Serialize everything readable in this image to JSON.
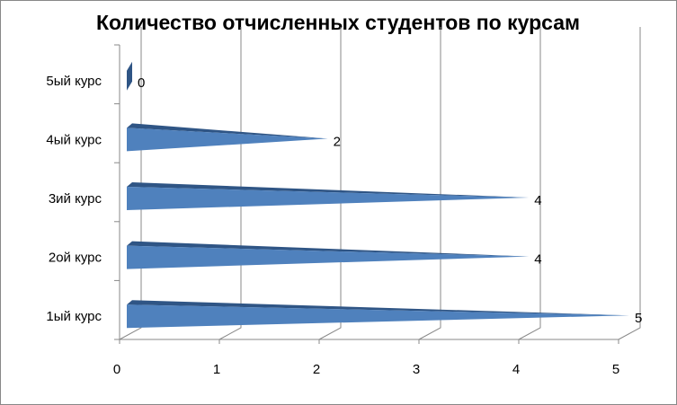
{
  "chart_data": {
    "type": "bar",
    "title": "Количество отчисленных студентов по курсам",
    "categories": [
      "1ый курс",
      "2ой курс",
      "3ий курс",
      "4ый курс",
      "5ый курс"
    ],
    "values": [
      5,
      4,
      4,
      2,
      0
    ],
    "color": "#4f81bd",
    "xlim": [
      0,
      5
    ],
    "xticks": [
      0,
      1,
      2,
      3,
      4,
      5
    ],
    "grid": true
  }
}
